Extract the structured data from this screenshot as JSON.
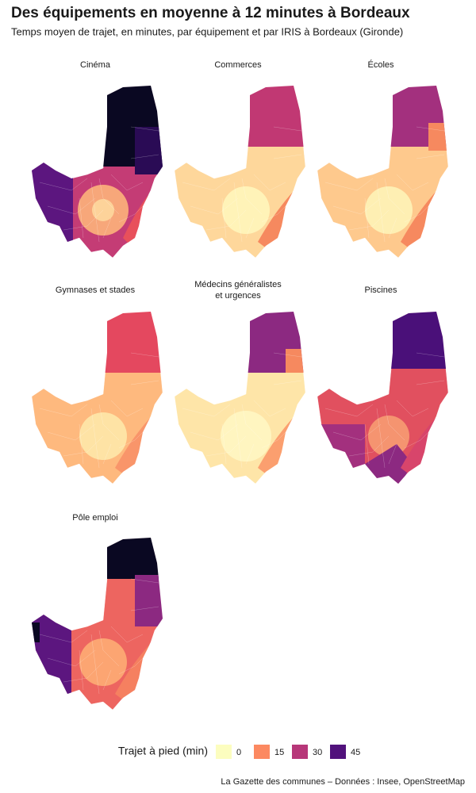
{
  "title": "Des équipements en moyenne à 12 minutes à Bordeaux",
  "subtitle": "Temps moyen de trajet, en minutes, par équipement et par IRIS à Bordeaux (Gironde)",
  "panels": [
    {
      "title": "Cinéma"
    },
    {
      "title": "Commerces"
    },
    {
      "title": "Écoles"
    },
    {
      "title": "Gymnases et stades"
    },
    {
      "title": "Médecins généralistes",
      "title_line2": "et urgences"
    },
    {
      "title": "Piscines"
    },
    {
      "title": "Pôle emploi"
    }
  ],
  "legend": {
    "title": "Trajet à pied (min)",
    "items": [
      {
        "value": 0,
        "color": "#fcfdbf"
      },
      {
        "value": 15,
        "color": "#fc8961"
      },
      {
        "value": 30,
        "color": "#b73779"
      },
      {
        "value": 45,
        "color": "#51127c"
      }
    ]
  },
  "source": "La Gazette des communes – Données : Insee, OpenStreetMap"
}
